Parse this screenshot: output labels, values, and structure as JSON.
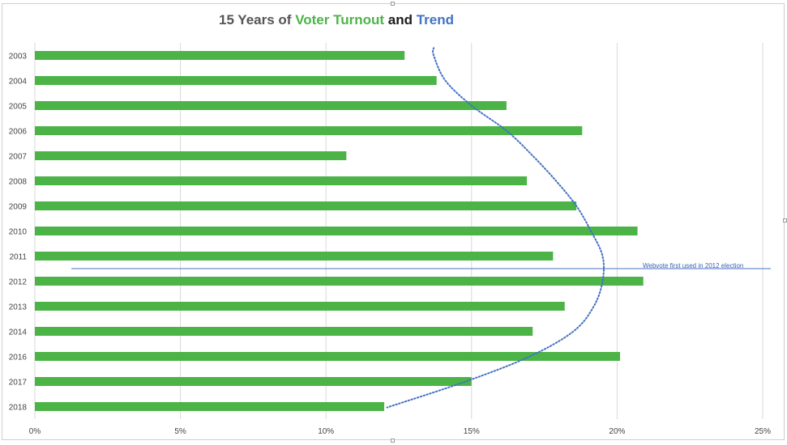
{
  "chart_data": {
    "type": "bar",
    "orientation": "horizontal",
    "title_parts": [
      {
        "text": "15 Years of ",
        "color": "#555555"
      },
      {
        "text": "Voter Turnout",
        "color": "#4cb447"
      },
      {
        "text": " and ",
        "color": "#1a1a1a"
      },
      {
        "text": "Trend",
        "color": "#4472c4"
      }
    ],
    "categories": [
      "2003",
      "2004",
      "2005",
      "2006",
      "2007",
      "2008",
      "2009",
      "2010",
      "2011",
      "2012",
      "2013",
      "2014",
      "2016",
      "2017",
      "2018"
    ],
    "values": [
      12.7,
      13.8,
      16.2,
      18.8,
      10.7,
      16.9,
      18.6,
      20.7,
      17.8,
      20.9,
      18.2,
      17.1,
      20.1,
      15.0,
      12.0
    ],
    "xlim": [
      0,
      25
    ],
    "x_ticks": [
      0,
      5,
      10,
      15,
      20,
      25
    ],
    "x_tick_labels": [
      "0%",
      "5%",
      "10%",
      "15%",
      "20%",
      "25%"
    ],
    "grid": true,
    "bar_color": "#4cb447",
    "trendline": {
      "type": "polynomial",
      "style": "dotted",
      "color": "#4472c4",
      "points": [
        {
          "year": "2003",
          "value": 13.7
        },
        {
          "year": "2004",
          "value": 14.1
        },
        {
          "year": "2005",
          "value": 15.0
        },
        {
          "year": "2006",
          "value": 16.2
        },
        {
          "year": "2007",
          "value": 17.1
        },
        {
          "year": "2008",
          "value": 17.9
        },
        {
          "year": "2009",
          "value": 18.6
        },
        {
          "year": "2010",
          "value": 19.1
        },
        {
          "year": "2011",
          "value": 19.5
        },
        {
          "year": "2012",
          "value": 19.5
        },
        {
          "year": "2013",
          "value": 19.2
        },
        {
          "year": "2014",
          "value": 18.5
        },
        {
          "year": "2016",
          "value": 17.0
        },
        {
          "year": "2017",
          "value": 14.8
        },
        {
          "year": "2018",
          "value": 12.6
        }
      ]
    },
    "annotation": {
      "text": "Webvote first used in 2012 election",
      "between": [
        "2011",
        "2012"
      ],
      "color": "#4472c4"
    }
  }
}
